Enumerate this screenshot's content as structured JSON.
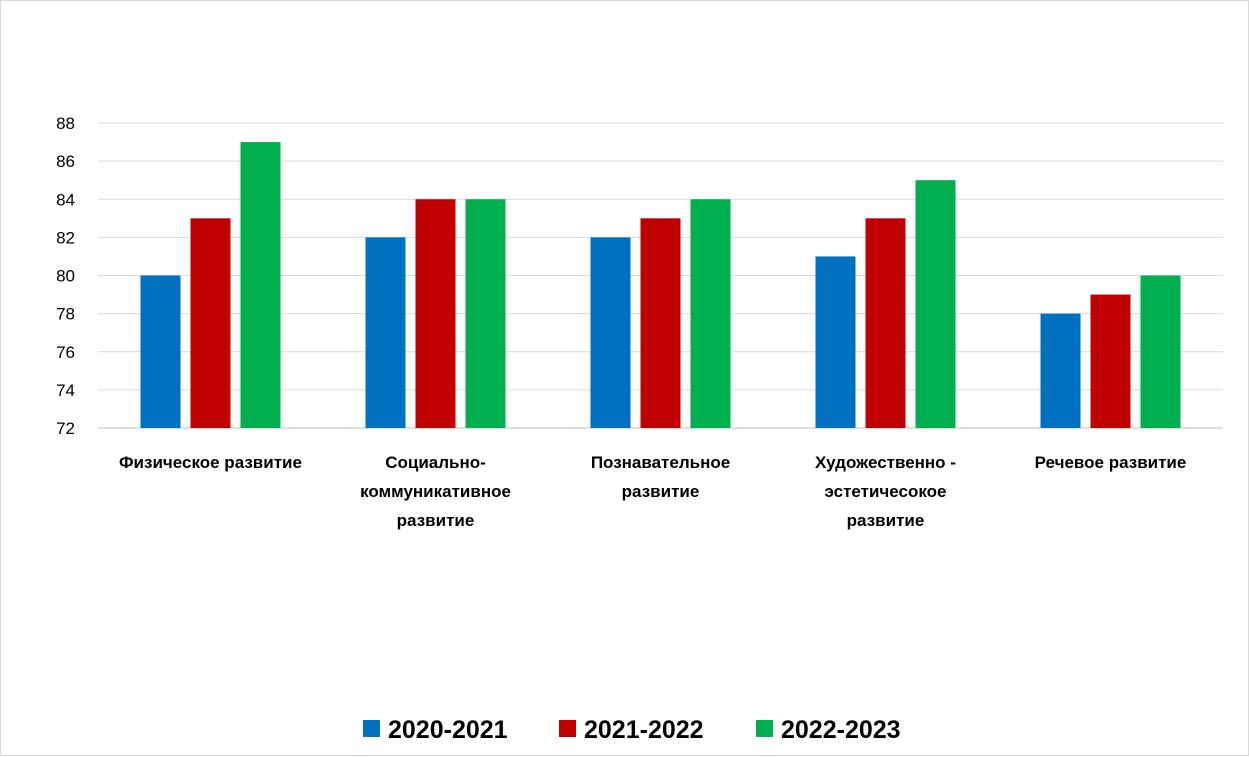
{
  "chart_data": {
    "type": "bar",
    "categories": [
      [
        "Физическое развитие"
      ],
      [
        "Социально-",
        "коммуникативное",
        "развитие"
      ],
      [
        "Познавательное",
        "развитие"
      ],
      [
        "Художественно -",
        "эстетичесокое",
        "развитие"
      ],
      [
        "Речевое развитие"
      ]
    ],
    "series": [
      {
        "name": "2020-2021",
        "color": "#0070C0",
        "values": [
          80,
          82,
          82,
          81,
          78
        ]
      },
      {
        "name": "2021-2022",
        "color": "#C00000",
        "values": [
          83,
          84,
          83,
          83,
          79
        ]
      },
      {
        "name": "2022-2023",
        "color": "#00B050",
        "values": [
          87,
          84,
          84,
          85,
          80
        ]
      }
    ],
    "ylim": [
      72,
      88
    ],
    "yticks": [
      72,
      74,
      76,
      78,
      80,
      82,
      84,
      86,
      88
    ],
    "grid": true,
    "legend_position": "bottom",
    "title": "",
    "xlabel": "",
    "ylabel": ""
  }
}
